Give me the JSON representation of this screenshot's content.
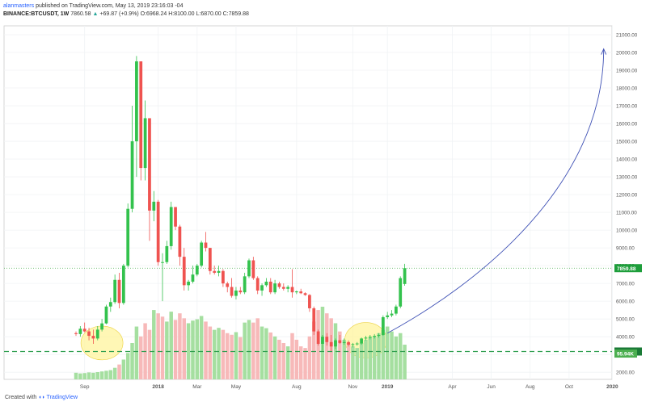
{
  "header": {
    "author": "alanmasters",
    "published": " published on TradingView.com, May 13, 2019 23:16:03 -04",
    "symbol": "BINANCE:BTCUSDT, 1W",
    "last": "7860.58",
    "change": "+69.87 (+0.9%)",
    "ohlc": "O:6968.24 H:8100.00 L:6870.00 C:7859.88"
  },
  "footer": {
    "prefix": "Created with",
    "brand": "TradingView"
  },
  "colors": {
    "up": "#26a69a",
    "up_bar": "#33c24d",
    "down": "#ef5350",
    "vol_up": "#a5dfa0",
    "vol_down": "#f7b9b9",
    "price_line": "#4caf50",
    "support_line": "#2e9e4f",
    "arc": "#3f51b5",
    "ellipse": "#fff59d"
  },
  "chart_data": {
    "type": "candlestick",
    "ylim": [
      1600,
      21500
    ],
    "y_ticks": [
      "21000.00",
      "20000.00",
      "19000.00",
      "18000.00",
      "17000.00",
      "16000.00",
      "15000.00",
      "14000.00",
      "13000.00",
      "12000.00",
      "11000.00",
      "10000.00",
      "9000.00",
      "8000.00",
      "7000.00",
      "6000.00",
      "5000.00",
      "4000.00",
      "3000.00",
      "2000.00"
    ],
    "y_tick_values": [
      21000,
      20000,
      19000,
      18000,
      17000,
      16000,
      15000,
      14000,
      13000,
      12000,
      11000,
      10000,
      9000,
      8000,
      7000,
      6000,
      5000,
      4000,
      3000,
      2000
    ],
    "x_labels": [
      "Sep",
      "2018",
      "Mar",
      "May",
      "Aug",
      "Nov",
      "2019",
      "Apr",
      "Jun",
      "Aug",
      "Oct",
      "2020"
    ],
    "x_label_weeks": [
      2,
      19,
      28,
      37,
      51,
      64,
      72,
      87,
      96,
      105,
      114,
      124
    ],
    "last_price_label": "7859.88",
    "last_price": 7860,
    "support_label": "3168.12",
    "support_price": 3168,
    "volume_label": "95.94K",
    "candles": [
      [
        4200,
        4300,
        4050,
        4150
      ],
      [
        4150,
        4600,
        4000,
        4450
      ],
      [
        4450,
        4800,
        4250,
        4300
      ],
      [
        4300,
        4500,
        3800,
        4050
      ],
      [
        4050,
        4400,
        3600,
        3900
      ],
      [
        3900,
        4600,
        3800,
        4400
      ],
      [
        4400,
        5000,
        4300,
        4750
      ],
      [
        4750,
        5800,
        4700,
        5700
      ],
      [
        5700,
        6200,
        5400,
        5950
      ],
      [
        5950,
        7500,
        5850,
        7200
      ],
      [
        7200,
        7600,
        5600,
        5900
      ],
      [
        5900,
        8100,
        5800,
        8000
      ],
      [
        8000,
        11500,
        7900,
        11200
      ],
      [
        11200,
        17000,
        11000,
        15000
      ],
      [
        15000,
        19800,
        13000,
        19500
      ],
      [
        19500,
        19500,
        12800,
        13500
      ],
      [
        13500,
        17300,
        12800,
        16300
      ],
      [
        16300,
        16300,
        9400,
        11100
      ],
      [
        11100,
        12200,
        10500,
        11600
      ],
      [
        11600,
        11700,
        8000,
        8200
      ],
      [
        8200,
        8700,
        6000,
        8200
      ],
      [
        8200,
        9400,
        8100,
        9100
      ],
      [
        9100,
        11600,
        8900,
        11300
      ],
      [
        11300,
        11300,
        10000,
        10200
      ],
      [
        10200,
        10300,
        8000,
        8500
      ],
      [
        8500,
        9000,
        6600,
        6900
      ],
      [
        6900,
        7200,
        6600,
        7100
      ],
      [
        7100,
        8000,
        7000,
        7500
      ],
      [
        7500,
        8100,
        7400,
        8000
      ],
      [
        8000,
        9400,
        7900,
        9300
      ],
      [
        9300,
        9900,
        8800,
        9000
      ],
      [
        9000,
        9000,
        7500,
        7700
      ],
      [
        7700,
        8000,
        7500,
        7600
      ],
      [
        7600,
        8000,
        7400,
        7700
      ],
      [
        7700,
        7800,
        6800,
        7000
      ],
      [
        7000,
        7100,
        6500,
        6800
      ],
      [
        6800,
        7300,
        6200,
        6300
      ],
      [
        6300,
        6800,
        6100,
        6600
      ],
      [
        6600,
        6800,
        6400,
        6500
      ],
      [
        6500,
        7600,
        6400,
        7400
      ],
      [
        7400,
        8400,
        7300,
        8300
      ],
      [
        8300,
        8500,
        7200,
        7300
      ],
      [
        7300,
        7400,
        6400,
        6600
      ],
      [
        6600,
        7000,
        6300,
        6900
      ],
      [
        6900,
        7300,
        6800,
        7100
      ],
      [
        7100,
        7300,
        6400,
        6500
      ],
      [
        6500,
        7200,
        6400,
        7000
      ],
      [
        7000,
        7100,
        6700,
        6800
      ],
      [
        6800,
        7000,
        6600,
        6700
      ],
      [
        6700,
        6900,
        6500,
        6800
      ],
      [
        6800,
        7800,
        6200,
        6500
      ],
      [
        6500,
        6600,
        6400,
        6550
      ],
      [
        6550,
        6700,
        6400,
        6450
      ],
      [
        6450,
        6500,
        6300,
        6350
      ],
      [
        6350,
        6400,
        5400,
        5600
      ],
      [
        5600,
        5700,
        4100,
        4300
      ],
      [
        4300,
        4400,
        3500,
        3600
      ],
      [
        3600,
        4100,
        3200,
        4000
      ],
      [
        4000,
        4200,
        3500,
        3700
      ],
      [
        3700,
        4100,
        3200,
        3450
      ],
      [
        3450,
        3900,
        3300,
        3800
      ],
      [
        3800,
        4100,
        3600,
        3650
      ],
      [
        3650,
        3900,
        3550,
        3700
      ],
      [
        3700,
        3800,
        3450,
        3550
      ],
      [
        3550,
        3650,
        3400,
        3580
      ],
      [
        3580,
        3700,
        3500,
        3620
      ],
      [
        3620,
        3950,
        3550,
        3900
      ],
      [
        3900,
        4050,
        3800,
        3950
      ],
      [
        3950,
        4100,
        3850,
        4000
      ],
      [
        4000,
        4150,
        3900,
        4050
      ],
      [
        4050,
        4200,
        3950,
        4100
      ],
      [
        4100,
        5200,
        4050,
        5100
      ],
      [
        5100,
        5400,
        5000,
        5200
      ],
      [
        5200,
        5500,
        5100,
        5300
      ],
      [
        5300,
        5800,
        5200,
        5700
      ],
      [
        5700,
        7400,
        5600,
        7300
      ],
      [
        6968,
        8100,
        6870,
        7860
      ]
    ],
    "volumes": [
      [
        20,
        1
      ],
      [
        18,
        1
      ],
      [
        19,
        1
      ],
      [
        21,
        1
      ],
      [
        20,
        1
      ],
      [
        22,
        1
      ],
      [
        24,
        1
      ],
      [
        26,
        1
      ],
      [
        28,
        1
      ],
      [
        35,
        1
      ],
      [
        45,
        0
      ],
      [
        60,
        1
      ],
      [
        80,
        1
      ],
      [
        110,
        1
      ],
      [
        160,
        1
      ],
      [
        130,
        0
      ],
      [
        170,
        0
      ],
      [
        150,
        0
      ],
      [
        210,
        1
      ],
      [
        200,
        0
      ],
      [
        190,
        0
      ],
      [
        175,
        1
      ],
      [
        205,
        1
      ],
      [
        180,
        0
      ],
      [
        200,
        0
      ],
      [
        185,
        0
      ],
      [
        170,
        1
      ],
      [
        178,
        1
      ],
      [
        182,
        1
      ],
      [
        192,
        1
      ],
      [
        175,
        0
      ],
      [
        160,
        0
      ],
      [
        150,
        1
      ],
      [
        156,
        1
      ],
      [
        150,
        0
      ],
      [
        140,
        0
      ],
      [
        135,
        0
      ],
      [
        143,
        1
      ],
      [
        128,
        0
      ],
      [
        172,
        1
      ],
      [
        180,
        1
      ],
      [
        172,
        0
      ],
      [
        185,
        0
      ],
      [
        160,
        1
      ],
      [
        155,
        1
      ],
      [
        142,
        0
      ],
      [
        130,
        1
      ],
      [
        120,
        0
      ],
      [
        110,
        0
      ],
      [
        100,
        1
      ],
      [
        140,
        0
      ],
      [
        120,
        0
      ],
      [
        100,
        0
      ],
      [
        95,
        0
      ],
      [
        130,
        0
      ],
      [
        175,
        0
      ],
      [
        210,
        0
      ],
      [
        220,
        1
      ],
      [
        200,
        0
      ],
      [
        185,
        0
      ],
      [
        170,
        1
      ],
      [
        145,
        0
      ],
      [
        120,
        1
      ],
      [
        110,
        0
      ],
      [
        100,
        1
      ],
      [
        95,
        1
      ],
      [
        110,
        1
      ],
      [
        120,
        1
      ],
      [
        128,
        1
      ],
      [
        130,
        1
      ],
      [
        140,
        1
      ],
      [
        150,
        1
      ],
      [
        160,
        1
      ],
      [
        145,
        1
      ],
      [
        130,
        1
      ],
      [
        140,
        1
      ],
      [
        105,
        1
      ]
    ],
    "arc_target_week": 122,
    "arc_target_price": 20200
  }
}
